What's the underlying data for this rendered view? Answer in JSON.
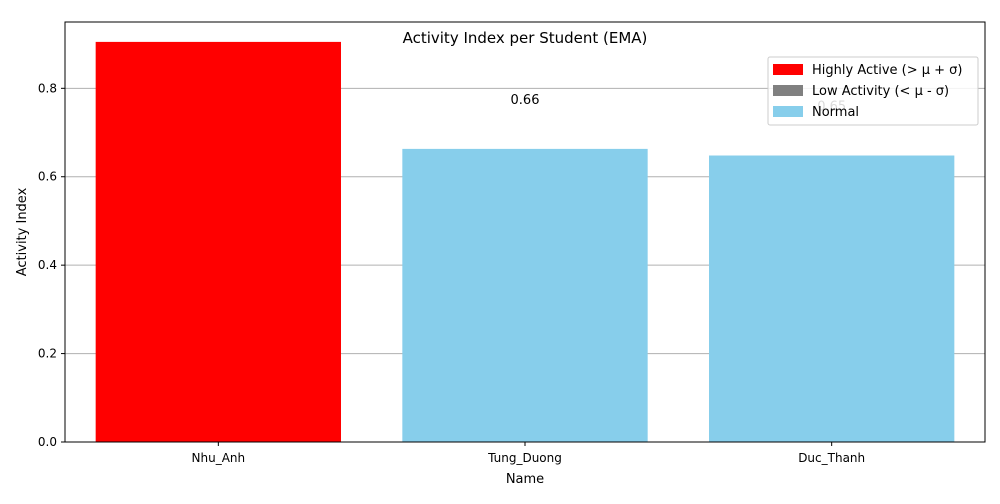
{
  "chart_data": {
    "type": "bar",
    "title": "Activity Index per Student (EMA)",
    "xlabel": "Name",
    "ylabel": "Activity Index",
    "categories": [
      "Nhu_Anh",
      "Tung_Duong",
      "Duc_Thanh"
    ],
    "values": [
      0.905,
      0.663,
      0.648
    ],
    "data_labels": [
      "0.90",
      "0.66",
      "0.65"
    ],
    "bar_colors": [
      "#ff0000",
      "#87ceeb",
      "#87ceeb"
    ],
    "ylim": [
      0,
      0.95
    ],
    "yticks": [
      0.0,
      0.2,
      0.4,
      0.6,
      0.8
    ],
    "ytick_labels": [
      "0.0",
      "0.2",
      "0.4",
      "0.6",
      "0.8"
    ],
    "grid": "horizontal",
    "legend_position": "top-right",
    "legend": [
      {
        "label": "Highly Active (> μ + σ)",
        "color": "#ff0000"
      },
      {
        "label": "Low Activity (< μ - σ)",
        "color": "#808080"
      },
      {
        "label": "Normal",
        "color": "#87ceeb"
      }
    ]
  }
}
